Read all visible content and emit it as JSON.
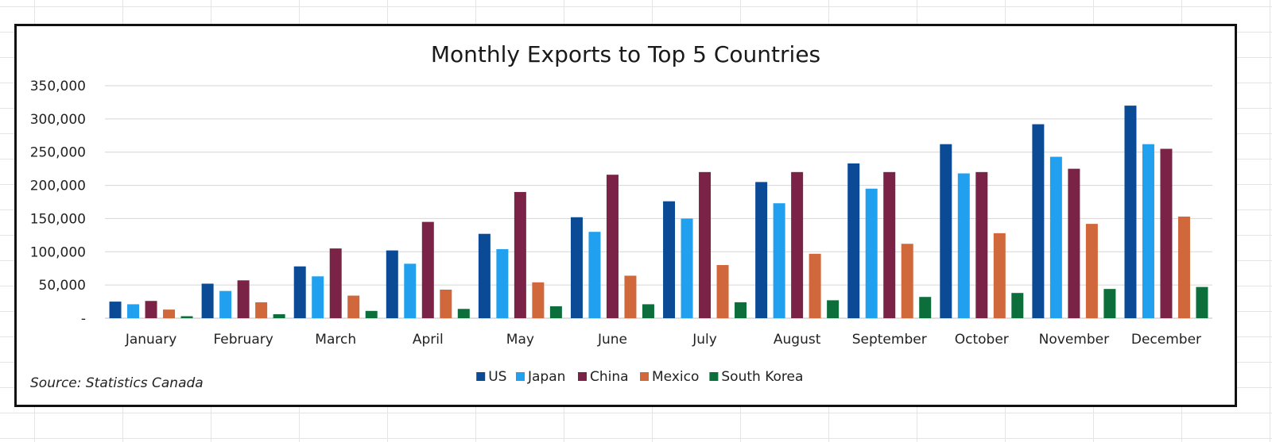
{
  "chart_data": {
    "type": "bar",
    "title": "Monthly Exports to Top 5 Countries",
    "source": "Source: Statistics Canada",
    "categories": [
      "January",
      "February",
      "March",
      "April",
      "May",
      "June",
      "July",
      "August",
      "September",
      "October",
      "November",
      "December"
    ],
    "ylim": [
      0,
      350000
    ],
    "yticks": [
      0,
      50000,
      100000,
      150000,
      200000,
      250000,
      300000,
      350000
    ],
    "ytick_labels": [
      "-",
      "50,000",
      "100,000",
      "150,000",
      "200,000",
      "250,000",
      "300,000",
      "350,000"
    ],
    "grid": true,
    "legend_position": "bottom",
    "series": [
      {
        "name": "US",
        "color": "#0b4b96",
        "values": [
          25000,
          52000,
          78000,
          102000,
          127000,
          152000,
          176000,
          205000,
          233000,
          262000,
          292000,
          320000
        ]
      },
      {
        "name": "Japan",
        "color": "#21a0ef",
        "values": [
          21000,
          41000,
          63000,
          82000,
          104000,
          130000,
          150000,
          173000,
          195000,
          218000,
          243000,
          262000
        ]
      },
      {
        "name": "China",
        "color": "#7b2346",
        "values": [
          26000,
          57000,
          105000,
          145000,
          190000,
          216000,
          220000,
          220000,
          220000,
          220000,
          225000,
          255000
        ]
      },
      {
        "name": "Mexico",
        "color": "#d0683c",
        "values": [
          13000,
          24000,
          34000,
          43000,
          54000,
          64000,
          80000,
          97000,
          112000,
          128000,
          142000,
          153000
        ]
      },
      {
        "name": "South Korea",
        "color": "#0c6e3a",
        "values": [
          3000,
          6000,
          11000,
          14000,
          18000,
          21000,
          24000,
          27000,
          32000,
          38000,
          44000,
          47000
        ]
      }
    ]
  }
}
